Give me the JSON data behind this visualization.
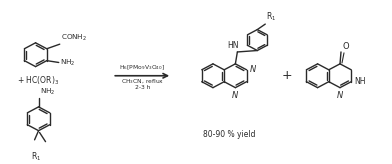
{
  "line_color": "#2a2a2a",
  "fig_width": 3.92,
  "fig_height": 1.64,
  "dpi": 100,
  "arrow_text_line1": "H$_6$[PMo$_9$V$_3$O$_{40}$]",
  "arrow_text_line2": "CH$_3$CN, reflux",
  "arrow_text_line3": "2-3 h",
  "yield_text": "80-90 % yield",
  "reagent_text": "+ HC(OR)$_3$",
  "plus_product": "+"
}
